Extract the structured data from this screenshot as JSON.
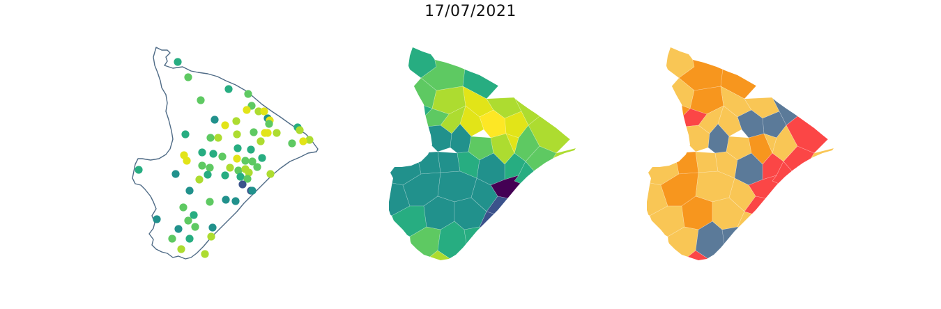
{
  "figure": {
    "title": "17/07/2021"
  },
  "colors": {
    "outline": "#4f6b86",
    "viridis": [
      "#440154",
      "#3b528b",
      "#21918c",
      "#27ad81",
      "#5ec962",
      "#addc30",
      "#e2e418",
      "#fde725"
    ],
    "risk": {
      "low": "#5b7a99",
      "moderate": "#f9c655",
      "high": "#f7961e",
      "very_high": "#fb4646"
    }
  },
  "panels": [
    {
      "id": "points",
      "kind": "station-points-over-state-outline"
    },
    {
      "id": "choropleth",
      "kind": "municipal-choropleth-viridis"
    },
    {
      "id": "risk",
      "kind": "municipal-categorical-risk"
    }
  ]
}
